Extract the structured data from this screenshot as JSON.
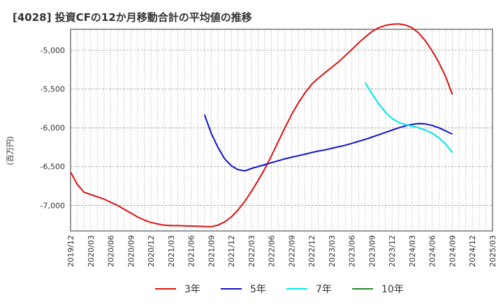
{
  "chart_data": {
    "type": "line",
    "title": "[4028]  投資CFの12か月移動合計の平均値の推移",
    "ylabel": "(百万円)",
    "xlabel": "",
    "ylim": [
      -7330,
      -4730
    ],
    "yticks": [
      -5000,
      -5500,
      -6000,
      -6500,
      -7000
    ],
    "ytick_labels": [
      "-5,000",
      "-5,500",
      "-6,000",
      "-6,500",
      "-7,000"
    ],
    "x_start": "2019-12",
    "x_end": "2025-03",
    "xtick_labels": [
      "2019/12",
      "2020/03",
      "2020/06",
      "2020/09",
      "2020/12",
      "2021/03",
      "2021/06",
      "2021/09",
      "2021/12",
      "2022/03",
      "2022/06",
      "2022/09",
      "2022/12",
      "2023/03",
      "2023/06",
      "2023/09",
      "2023/12",
      "2024/03",
      "2024/06",
      "2024/09",
      "2024/12",
      "2025/03"
    ],
    "grid": true,
    "legend_position": "bottom",
    "series": [
      {
        "name": "3年",
        "color": "#dd1111",
        "points": [
          [
            "2019-12",
            -6570
          ],
          [
            "2020-01",
            -6730
          ],
          [
            "2020-02",
            -6830
          ],
          [
            "2020-03",
            -6860
          ],
          [
            "2020-04",
            -6890
          ],
          [
            "2020-05",
            -6920
          ],
          [
            "2020-06",
            -6960
          ],
          [
            "2020-07",
            -7000
          ],
          [
            "2020-08",
            -7050
          ],
          [
            "2020-09",
            -7100
          ],
          [
            "2020-10",
            -7150
          ],
          [
            "2020-11",
            -7190
          ],
          [
            "2020-12",
            -7220
          ],
          [
            "2021-01",
            -7240
          ],
          [
            "2021-02",
            -7255
          ],
          [
            "2021-03",
            -7260
          ],
          [
            "2021-04",
            -7262
          ],
          [
            "2021-05",
            -7265
          ],
          [
            "2021-06",
            -7267
          ],
          [
            "2021-07",
            -7270
          ],
          [
            "2021-08",
            -7272
          ],
          [
            "2021-09",
            -7275
          ],
          [
            "2021-10",
            -7255
          ],
          [
            "2021-11",
            -7215
          ],
          [
            "2021-12",
            -7150
          ],
          [
            "2022-01",
            -7060
          ],
          [
            "2022-02",
            -6950
          ],
          [
            "2022-03",
            -6820
          ],
          [
            "2022-04",
            -6680
          ],
          [
            "2022-05",
            -6530
          ],
          [
            "2022-06",
            -6360
          ],
          [
            "2022-07",
            -6180
          ],
          [
            "2022-08",
            -6000
          ],
          [
            "2022-09",
            -5830
          ],
          [
            "2022-10",
            -5680
          ],
          [
            "2022-11",
            -5550
          ],
          [
            "2022-12",
            -5440
          ],
          [
            "2023-01",
            -5360
          ],
          [
            "2023-02",
            -5290
          ],
          [
            "2023-03",
            -5220
          ],
          [
            "2023-04",
            -5150
          ],
          [
            "2023-05",
            -5070
          ],
          [
            "2023-06",
            -4990
          ],
          [
            "2023-07",
            -4905
          ],
          [
            "2023-08",
            -4830
          ],
          [
            "2023-09",
            -4760
          ],
          [
            "2023-10",
            -4710
          ],
          [
            "2023-11",
            -4680
          ],
          [
            "2023-12",
            -4665
          ],
          [
            "2024-01",
            -4660
          ],
          [
            "2024-02",
            -4675
          ],
          [
            "2024-03",
            -4710
          ],
          [
            "2024-04",
            -4780
          ],
          [
            "2024-05",
            -4880
          ],
          [
            "2024-06",
            -5010
          ],
          [
            "2024-07",
            -5160
          ],
          [
            "2024-08",
            -5340
          ],
          [
            "2024-09",
            -5570
          ]
        ]
      },
      {
        "name": "5年",
        "color": "#1111cc",
        "points": [
          [
            "2021-08",
            -5830
          ],
          [
            "2021-09",
            -6070
          ],
          [
            "2021-10",
            -6250
          ],
          [
            "2021-11",
            -6400
          ],
          [
            "2021-12",
            -6490
          ],
          [
            "2022-01",
            -6540
          ],
          [
            "2022-02",
            -6555
          ],
          [
            "2022-03",
            -6525
          ],
          [
            "2022-04",
            -6500
          ],
          [
            "2022-05",
            -6475
          ],
          [
            "2022-06",
            -6450
          ],
          [
            "2022-07",
            -6425
          ],
          [
            "2022-08",
            -6400
          ],
          [
            "2022-09",
            -6380
          ],
          [
            "2022-10",
            -6360
          ],
          [
            "2022-11",
            -6340
          ],
          [
            "2022-12",
            -6320
          ],
          [
            "2023-01",
            -6300
          ],
          [
            "2023-02",
            -6285
          ],
          [
            "2023-03",
            -6265
          ],
          [
            "2023-04",
            -6245
          ],
          [
            "2023-05",
            -6225
          ],
          [
            "2023-06",
            -6200
          ],
          [
            "2023-07",
            -6175
          ],
          [
            "2023-08",
            -6150
          ],
          [
            "2023-09",
            -6120
          ],
          [
            "2023-10",
            -6090
          ],
          [
            "2023-11",
            -6060
          ],
          [
            "2023-12",
            -6030
          ],
          [
            "2024-01",
            -6000
          ],
          [
            "2024-02",
            -5975
          ],
          [
            "2024-03",
            -5955
          ],
          [
            "2024-04",
            -5945
          ],
          [
            "2024-05",
            -5950
          ],
          [
            "2024-06",
            -5970
          ],
          [
            "2024-07",
            -6000
          ],
          [
            "2024-08",
            -6040
          ],
          [
            "2024-09",
            -6080
          ]
        ]
      },
      {
        "name": "7年",
        "color": "#00e5ee",
        "points": [
          [
            "2023-08",
            -5420
          ],
          [
            "2023-09",
            -5560
          ],
          [
            "2023-10",
            -5690
          ],
          [
            "2023-11",
            -5800
          ],
          [
            "2023-12",
            -5880
          ],
          [
            "2024-01",
            -5930
          ],
          [
            "2024-02",
            -5960
          ],
          [
            "2024-03",
            -5980
          ],
          [
            "2024-04",
            -6000
          ],
          [
            "2024-05",
            -6030
          ],
          [
            "2024-06",
            -6070
          ],
          [
            "2024-07",
            -6130
          ],
          [
            "2024-08",
            -6210
          ],
          [
            "2024-09",
            -6320
          ]
        ]
      },
      {
        "name": "10年",
        "color": "#228b22",
        "points": []
      }
    ]
  }
}
